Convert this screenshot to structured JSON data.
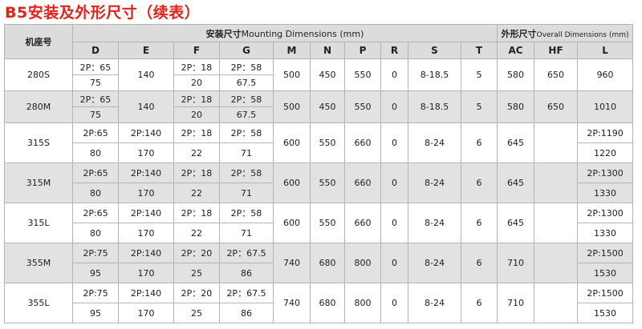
{
  "title": "B5安装及外形尺寸（续表）",
  "header": {
    "model_label": "机座号",
    "mounting_cn": "安装尺寸",
    "mounting_en": "Mounting Dimensions (mm)",
    "overall_cn": "外形尺寸",
    "overall_en": "Overall Dimensions (mm)",
    "columns": [
      "D",
      "E",
      "F",
      "G",
      "M",
      "N",
      "P",
      "R",
      "S",
      "T",
      "AC",
      "HF",
      "L"
    ]
  },
  "rows": [
    {
      "model": "280S",
      "gray": false,
      "cells": [
        [
          "2P：65",
          "75"
        ],
        "140",
        [
          "2P：18",
          "20"
        ],
        [
          "2P：58",
          "67.5"
        ],
        "500",
        "450",
        "550",
        "0",
        "8-18.5",
        "5",
        "580",
        "650",
        "960"
      ]
    },
    {
      "model": "280M",
      "gray": true,
      "cells": [
        [
          "2P：65",
          "75"
        ],
        "140",
        [
          "2P：18",
          "20"
        ],
        [
          "2P：58",
          "67.5"
        ],
        "500",
        "450",
        "550",
        "0",
        "8-18.5",
        "5",
        "580",
        "650",
        "1010"
      ]
    },
    {
      "model": "315S",
      "gray": false,
      "cells": [
        [
          "2P:65",
          "80"
        ],
        [
          "2P:140",
          "170"
        ],
        [
          "2P：18",
          "22"
        ],
        [
          "2P：58",
          "71"
        ],
        "600",
        "550",
        "660",
        "0",
        "8-24",
        "6",
        "645",
        "",
        [
          "2P:1190",
          "1220"
        ]
      ]
    },
    {
      "model": "315M",
      "gray": true,
      "cells": [
        [
          "2P:65",
          "80"
        ],
        [
          "2P:140",
          "170"
        ],
        [
          "2P：18",
          "22"
        ],
        [
          "2P：58",
          "71"
        ],
        "600",
        "550",
        "660",
        "0",
        "8-24",
        "6",
        "645",
        "",
        [
          "2P:1300",
          "1330"
        ]
      ]
    },
    {
      "model": "315L",
      "gray": false,
      "cells": [
        [
          "2P:65",
          "80"
        ],
        [
          "2P:140",
          "170"
        ],
        [
          "2P：18",
          "22"
        ],
        [
          "2P：58",
          "71"
        ],
        "600",
        "550",
        "660",
        "0",
        "8-24",
        "6",
        "645",
        "",
        [
          "2P:1300",
          "1330"
        ]
      ]
    },
    {
      "model": "355M",
      "gray": true,
      "cells": [
        [
          "2P:75",
          "95"
        ],
        [
          "2P:140",
          "170"
        ],
        [
          "2P：20",
          "25"
        ],
        [
          "2P：67.5",
          "86"
        ],
        "740",
        "680",
        "800",
        "0",
        "8-24",
        "6",
        "710",
        "",
        [
          "2P:1500",
          "1530"
        ]
      ]
    },
    {
      "model": "355L",
      "gray": false,
      "cells": [
        [
          "2P:75",
          "95"
        ],
        [
          "2P:140",
          "170"
        ],
        [
          "2P：20",
          "25"
        ],
        [
          "2P：67.5",
          "86"
        ],
        "740",
        "680",
        "800",
        "0",
        "8-24",
        "6",
        "710",
        "",
        [
          "2P:1500",
          "1530"
        ]
      ]
    }
  ]
}
